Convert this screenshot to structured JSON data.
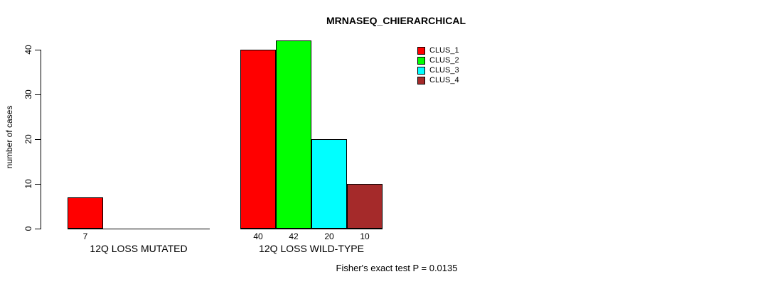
{
  "chart_data": {
    "type": "bar",
    "title": "MRNASEQ_CHIERARCHICAL",
    "ylabel": "number of cases",
    "xlabel": "",
    "ylim": [
      0,
      40
    ],
    "yticks": [
      0,
      10,
      20,
      30,
      40
    ],
    "grid": false,
    "legend_position": "top-right",
    "categories": [
      "12Q LOSS MUTATED",
      "12Q LOSS WILD-TYPE"
    ],
    "series": [
      {
        "name": "CLUS_1",
        "color": "#ff0000",
        "values": [
          7,
          40
        ]
      },
      {
        "name": "CLUS_2",
        "color": "#00ff00",
        "values": [
          0,
          42
        ]
      },
      {
        "name": "CLUS_3",
        "color": "#00ffff",
        "values": [
          0,
          20
        ]
      },
      {
        "name": "CLUS_4",
        "color": "#a52a2a",
        "values": [
          0,
          10
        ]
      }
    ],
    "annotation": "Fisher's exact test P = 0.0135"
  }
}
